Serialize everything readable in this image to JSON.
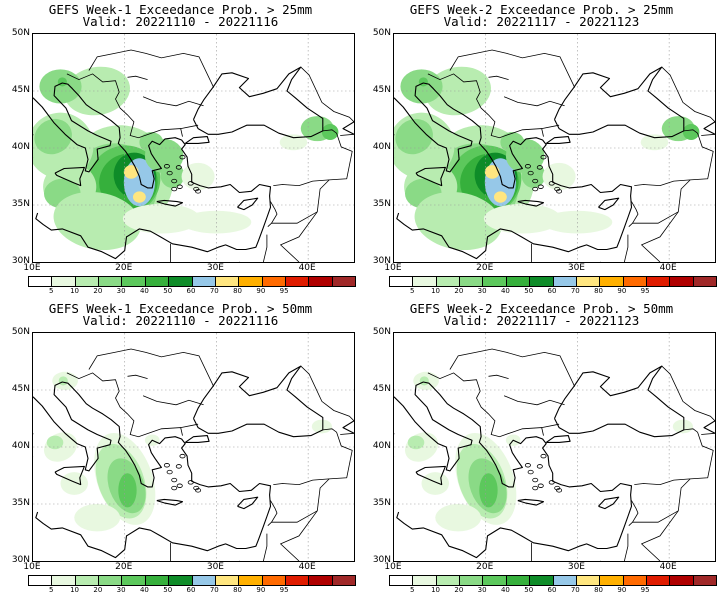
{
  "panels": [
    {
      "title": "GEFS Week-1 Exceedance Prob. > 25mm",
      "valid": "Valid: 20221110 - 20221116",
      "variant": "w1_25"
    },
    {
      "title": "GEFS Week-2 Exceedance Prob. > 25mm",
      "valid": "Valid: 20221117 - 20221123",
      "variant": "w2_25"
    },
    {
      "title": "GEFS Week-1 Exceedance Prob. > 50mm",
      "valid": "Valid: 20221110 - 20221116",
      "variant": "w1_50"
    },
    {
      "title": "GEFS Week-2 Exceedance Prob. > 50mm",
      "valid": "Valid: 20221117 - 20221123",
      "variant": "w2_50"
    }
  ],
  "lat_labels": [
    "50N",
    "45N",
    "40N",
    "35N",
    "30N"
  ],
  "lon_labels": [
    "10E",
    "20E",
    "30E",
    "40E"
  ],
  "colorbar": {
    "labels": [
      "5",
      "10",
      "20",
      "30",
      "40",
      "50",
      "60",
      "70",
      "80",
      "90",
      "95"
    ],
    "colors": [
      "#ffffff",
      "#e8f8e0",
      "#b8ecb0",
      "#8ada86",
      "#5cc85c",
      "#36b03c",
      "#0e8c28",
      "#96c8e8",
      "#ffe680",
      "#ffb000",
      "#ff6a00",
      "#e01c00",
      "#b00000",
      "#a02828"
    ]
  },
  "map_icons": [
    "coastline-shape",
    "border-shape",
    "gridline"
  ]
}
